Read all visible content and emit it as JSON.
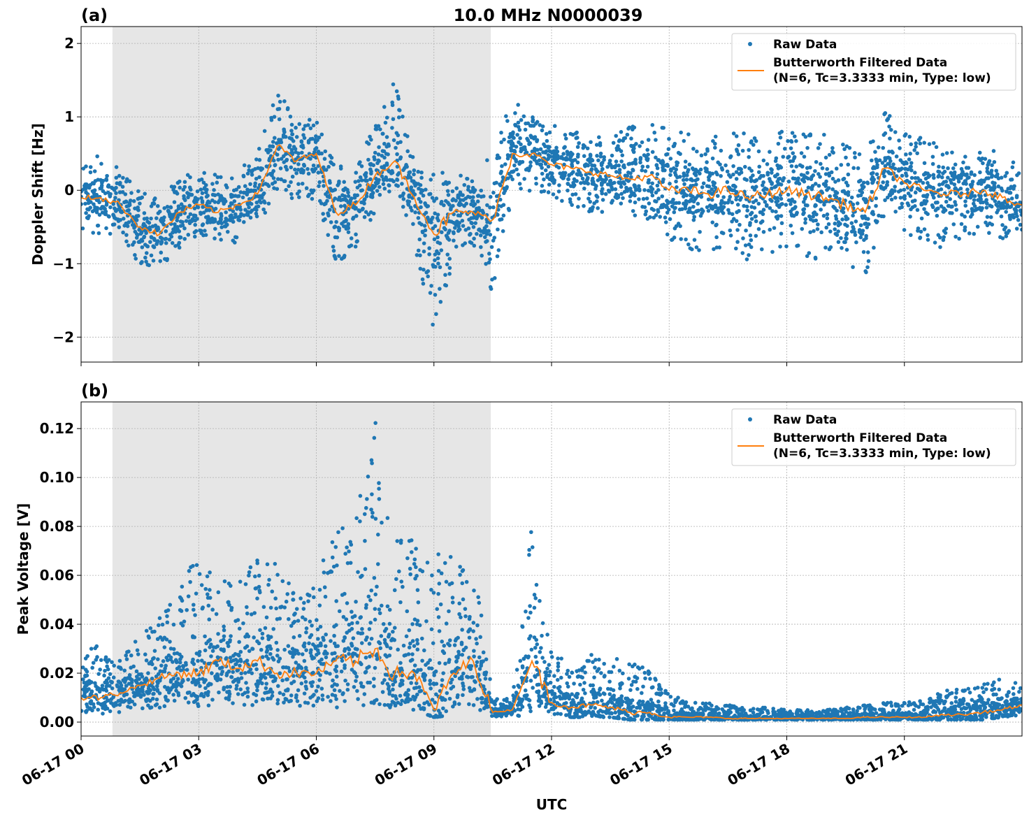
{
  "chart_data": [
    {
      "type": "scatter",
      "panel_label": "(a)",
      "title": "10.0 MHz N0000039",
      "xlabel": "",
      "ylabel": "Doppler Shift [Hz]",
      "xlim_hours": [
        0,
        24
      ],
      "ylim": [
        -2.34,
        2.23
      ],
      "yticks": [
        -2,
        -1,
        0,
        1,
        2
      ],
      "ytick_labels": [
        "−2",
        "−1",
        "0",
        "1",
        "2"
      ],
      "grid": true,
      "shaded_region_hours": [
        0.8,
        10.45
      ],
      "legend": {
        "placement": "top-right",
        "entries": [
          "Raw Data",
          "Butterworth Filtered Data",
          "(N=6, Tc=3.3333 min, Type: low)"
        ]
      },
      "x_hours": [
        0,
        0.5,
        1,
        1.5,
        2,
        2.5,
        3,
        3.5,
        4,
        4.5,
        5,
        5.5,
        6,
        6.5,
        7,
        7.5,
        8,
        8.5,
        9,
        9.5,
        10,
        10.5,
        11,
        11.5,
        12,
        12.5,
        13,
        13.5,
        14,
        14.5,
        15,
        15.5,
        16,
        16.5,
        17,
        17.5,
        18,
        18.5,
        19,
        19.5,
        20,
        20.5,
        21,
        21.5,
        22,
        22.5,
        23,
        23.5,
        24
      ],
      "series": [
        {
          "name": "Butterworth Filtered Data",
          "color": "#ff7f0e",
          "values": [
            -0.1,
            -0.1,
            -0.2,
            -0.5,
            -0.6,
            -0.3,
            -0.2,
            -0.3,
            -0.2,
            -0.05,
            0.6,
            0.4,
            0.5,
            -0.3,
            -0.2,
            0.2,
            0.4,
            -0.1,
            -0.6,
            -0.3,
            -0.3,
            -0.4,
            0.5,
            0.5,
            0.35,
            0.3,
            0.25,
            0.2,
            0.15,
            0.2,
            0.0,
            0.0,
            -0.05,
            0.0,
            -0.1,
            -0.05,
            0.0,
            -0.05,
            -0.1,
            -0.2,
            -0.3,
            0.3,
            0.1,
            0.0,
            -0.05,
            -0.05,
            0.0,
            -0.1,
            -0.2
          ]
        },
        {
          "name": "Raw Data",
          "color": "#1f77b4",
          "raw_min": [
            -0.6,
            -0.6,
            -0.7,
            -1.0,
            -1.1,
            -0.8,
            -0.6,
            -0.8,
            -0.7,
            -0.5,
            0.0,
            -0.2,
            -0.1,
            -1.0,
            -0.8,
            -0.3,
            0.0,
            -0.7,
            -2.1,
            -1.0,
            -0.8,
            -1.4,
            -0.1,
            0.0,
            -0.1,
            -0.2,
            -0.3,
            -0.3,
            -0.4,
            -0.4,
            -0.7,
            -0.8,
            -0.9,
            -0.8,
            -1.0,
            -0.9,
            -0.8,
            -0.9,
            -1.0,
            -1.0,
            -1.2,
            -0.3,
            -0.6,
            -0.7,
            -0.8,
            -0.7,
            -0.6,
            -0.7,
            -0.6
          ],
          "raw_max": [
            0.3,
            0.5,
            0.3,
            0.0,
            -0.1,
            0.2,
            0.3,
            0.2,
            0.3,
            0.5,
            1.4,
            0.9,
            1.0,
            0.3,
            0.4,
            0.9,
            1.5,
            0.4,
            0.3,
            0.2,
            0.2,
            0.5,
            1.3,
            1.0,
            0.9,
            0.8,
            0.8,
            0.7,
            0.9,
            1.0,
            0.8,
            0.8,
            0.8,
            0.8,
            0.8,
            0.8,
            0.8,
            0.8,
            0.8,
            0.6,
            0.6,
            1.1,
            0.8,
            0.7,
            0.6,
            0.6,
            0.6,
            0.5,
            0.3
          ]
        }
      ]
    },
    {
      "type": "scatter",
      "panel_label": "(b)",
      "xlabel": "UTC",
      "ylabel": "Peak Voltage [V]",
      "xlim_hours": [
        0,
        24
      ],
      "ylim": [
        -0.0057,
        0.1309
      ],
      "yticks": [
        0,
        0.02,
        0.04,
        0.06,
        0.08,
        0.1,
        0.12
      ],
      "ytick_labels": [
        "0.00",
        "0.02",
        "0.04",
        "0.06",
        "0.08",
        "0.10",
        "0.12"
      ],
      "xtick_labels": [
        "06-17 00",
        "06-17 03",
        "06-17 06",
        "06-17 09",
        "06-17 12",
        "06-17 15",
        "06-17 18",
        "06-17 21"
      ],
      "xticks_hours": [
        0,
        3,
        6,
        9,
        12,
        15,
        18,
        21
      ],
      "grid": true,
      "shaded_region_hours": [
        0.8,
        10.45
      ],
      "legend": {
        "placement": "top-right",
        "entries": [
          "Raw Data",
          "Butterworth Filtered Data",
          "(N=6, Tc=3.3333 min, Type: low)"
        ]
      },
      "x_hours": [
        0,
        0.5,
        1,
        1.5,
        2,
        2.5,
        3,
        3.5,
        4,
        4.5,
        5,
        5.5,
        6,
        6.5,
        7,
        7.5,
        8,
        8.5,
        9,
        9.5,
        10,
        10.5,
        11,
        11.5,
        12,
        12.5,
        13,
        13.5,
        14,
        14.5,
        15,
        15.5,
        16,
        16.5,
        17,
        17.5,
        18,
        18.5,
        19,
        19.5,
        20,
        20.5,
        21,
        21.5,
        22,
        22.5,
        23,
        23.5,
        24
      ],
      "series": [
        {
          "name": "Butterworth Filtered Data",
          "color": "#ff7f0e",
          "values": [
            0.01,
            0.01,
            0.012,
            0.015,
            0.018,
            0.02,
            0.02,
            0.025,
            0.022,
            0.025,
            0.02,
            0.02,
            0.02,
            0.025,
            0.025,
            0.03,
            0.02,
            0.02,
            0.005,
            0.02,
            0.025,
            0.004,
            0.005,
            0.025,
            0.008,
            0.006,
            0.007,
            0.006,
            0.004,
            0.004,
            0.002,
            0.002,
            0.002,
            0.0015,
            0.0015,
            0.0015,
            0.0015,
            0.0015,
            0.0015,
            0.0015,
            0.002,
            0.002,
            0.002,
            0.002,
            0.003,
            0.003,
            0.004,
            0.005,
            0.007
          ]
        },
        {
          "name": "Raw Data",
          "color": "#1f77b4",
          "raw_min": [
            0.003,
            0.003,
            0.004,
            0.005,
            0.005,
            0.006,
            0.006,
            0.006,
            0.006,
            0.006,
            0.006,
            0.006,
            0.006,
            0.006,
            0.006,
            0.006,
            0.006,
            0.005,
            0.002,
            0.003,
            0.004,
            0.002,
            0.002,
            0.003,
            0.003,
            0.002,
            0.002,
            0.002,
            0.001,
            0.001,
            0.001,
            0.001,
            0.001,
            0.001,
            0.001,
            0.001,
            0.001,
            0.001,
            0.001,
            0.001,
            0.001,
            0.001,
            0.001,
            0.001,
            0.001,
            0.001,
            0.001,
            0.002,
            0.003
          ],
          "raw_max": [
            0.034,
            0.033,
            0.026,
            0.036,
            0.045,
            0.06,
            0.066,
            0.06,
            0.061,
            0.068,
            0.065,
            0.055,
            0.06,
            0.08,
            0.086,
            0.124,
            0.076,
            0.075,
            0.071,
            0.068,
            0.068,
            0.01,
            0.01,
            0.081,
            0.028,
            0.025,
            0.028,
            0.026,
            0.026,
            0.021,
            0.012,
            0.008,
            0.008,
            0.007,
            0.006,
            0.006,
            0.005,
            0.005,
            0.005,
            0.006,
            0.007,
            0.008,
            0.008,
            0.009,
            0.013,
            0.014,
            0.016,
            0.019,
            0.017
          ]
        }
      ]
    }
  ]
}
